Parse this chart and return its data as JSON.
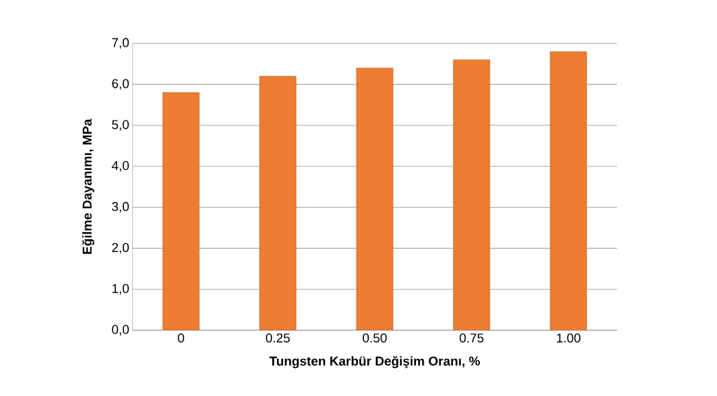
{
  "chart_data": {
    "type": "bar",
    "xlabel": "Tungsten Karbür Değişim Oranı, %",
    "ylabel": "Eğilme Dayanımı, MPa",
    "categories": [
      "0",
      "0.25",
      "0.50",
      "0.75",
      "1.00"
    ],
    "values": [
      5.8,
      6.2,
      6.4,
      6.6,
      6.8
    ],
    "color": "#ed7d31",
    "ylim": [
      0,
      7
    ],
    "yticks": [
      {
        "value": 0,
        "label": "0,0"
      },
      {
        "value": 1,
        "label": "1,0"
      },
      {
        "value": 2,
        "label": "2,0"
      },
      {
        "value": 3,
        "label": "3,0"
      },
      {
        "value": 4,
        "label": "4,0"
      },
      {
        "value": 5,
        "label": "5,0"
      },
      {
        "value": 6,
        "label": "6,0"
      },
      {
        "value": 7,
        "label": "7,0"
      }
    ],
    "grid": "y"
  }
}
